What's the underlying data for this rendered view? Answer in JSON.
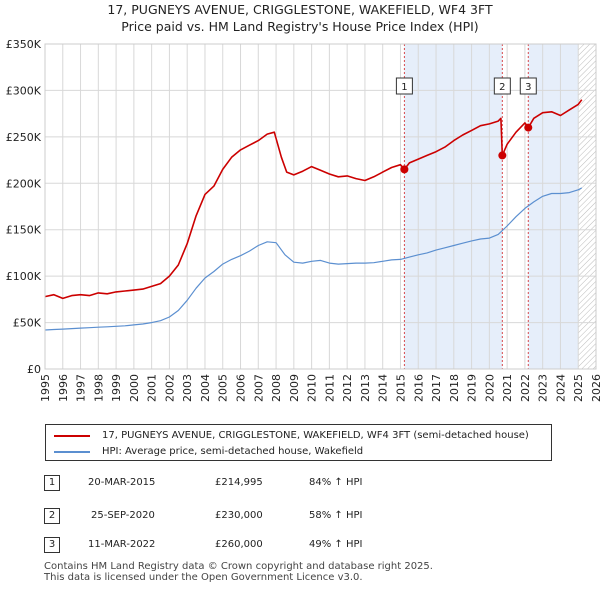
{
  "title_line1": "17, PUGNEYS AVENUE, CRIGGLESTONE, WAKEFIELD, WF4 3FT",
  "title_line2": "Price paid vs. HM Land Registry's House Price Index (HPI)",
  "colors": {
    "property": "#cc0000",
    "hpi": "#5b8fd0",
    "highlight": "#e6eefa",
    "grid": "#d8d8d8"
  },
  "legend": {
    "property_label": "17, PUGNEYS AVENUE, CRIGGLESTONE, WAKEFIELD, WF4 3FT (semi-detached house)",
    "hpi_label": "HPI: Average price, semi-detached house, Wakefield"
  },
  "transactions": [
    {
      "num": "1",
      "date": "20-MAR-2015",
      "price": "£214,995",
      "hpi": "84% ↑ HPI",
      "year": 2015.22,
      "value": 214995
    },
    {
      "num": "2",
      "date": "25-SEP-2020",
      "price": "£230,000",
      "hpi": "58% ↑ HPI",
      "year": 2020.73,
      "value": 230000
    },
    {
      "num": "3",
      "date": "11-MAR-2022",
      "price": "£260,000",
      "hpi": "49% ↑ HPI",
      "year": 2022.19,
      "value": 260000
    }
  ],
  "footer_line1": "Contains HM Land Registry data © Crown copyright and database right 2025.",
  "footer_line2": "This data is licensed under the Open Government Licence v3.0.",
  "chart_data": {
    "type": "line",
    "title": "17, PUGNEYS AVENUE, CRIGGLESTONE, WAKEFIELD, WF4 3FT — Price paid vs. HM Land Registry's House Price Index (HPI)",
    "xlim": [
      1995,
      2026
    ],
    "ylim": [
      0,
      350000
    ],
    "y_ticks": [
      0,
      50000,
      100000,
      150000,
      200000,
      250000,
      300000,
      350000
    ],
    "y_tick_labels": [
      "£0",
      "£50K",
      "£100K",
      "£150K",
      "£200K",
      "£250K",
      "£300K",
      "£350K"
    ],
    "x_ticks": [
      1995,
      1996,
      1997,
      1998,
      1999,
      2000,
      2001,
      2002,
      2003,
      2004,
      2005,
      2006,
      2007,
      2008,
      2009,
      2010,
      2011,
      2012,
      2013,
      2014,
      2015,
      2016,
      2017,
      2018,
      2019,
      2020,
      2021,
      2022,
      2023,
      2024,
      2025,
      2026
    ],
    "x_tick_labels": [
      "1995",
      "1996",
      "1997",
      "1998",
      "1999",
      "2000",
      "2001",
      "2002",
      "2003",
      "2004",
      "2005",
      "2006",
      "2007",
      "2008",
      "2009",
      "2010",
      "2011",
      "2012",
      "2013",
      "2014",
      "2015",
      "2016",
      "2017",
      "2018",
      "2019",
      "2020",
      "2021",
      "2022",
      "2023",
      "2024",
      "2025",
      "2026"
    ],
    "grid": true,
    "highlight_ranges": [
      [
        2015.22,
        2020.73
      ],
      [
        2022.19,
        2025.0
      ]
    ],
    "hatched_range": [
      2025.0,
      2026.0
    ],
    "series": [
      {
        "name": "17, PUGNEYS AVENUE, CRIGGLESTONE, WAKEFIELD, WF4 3FT (semi-detached house)",
        "x": [
          1995.0,
          1995.5,
          1996.0,
          1996.5,
          1997.0,
          1997.5,
          1998.0,
          1998.5,
          1999.0,
          1999.5,
          2000.0,
          2000.5,
          2001.0,
          2001.5,
          2002.0,
          2002.5,
          2003.0,
          2003.5,
          2004.0,
          2004.5,
          2005.0,
          2005.5,
          2006.0,
          2006.5,
          2007.0,
          2007.5,
          2007.9,
          2008.3,
          2008.6,
          2009.0,
          2009.5,
          2010.0,
          2010.5,
          2011.0,
          2011.5,
          2012.0,
          2012.5,
          2013.0,
          2013.5,
          2014.0,
          2014.5,
          2015.0,
          2015.22,
          2015.5,
          2016.0,
          2016.5,
          2017.0,
          2017.5,
          2018.0,
          2018.5,
          2019.0,
          2019.5,
          2020.0,
          2020.5,
          2020.65,
          2020.73,
          2021.0,
          2021.5,
          2022.0,
          2022.19,
          2022.5,
          2023.0,
          2023.5,
          2024.0,
          2024.5,
          2025.0,
          2025.2
        ],
        "values": [
          78000,
          80000,
          76000,
          79000,
          80000,
          79000,
          82000,
          81000,
          83000,
          84000,
          85000,
          86000,
          89000,
          92000,
          100000,
          112000,
          135000,
          165000,
          188000,
          197000,
          215000,
          228000,
          236000,
          241000,
          246000,
          253000,
          255000,
          228000,
          212000,
          209000,
          213000,
          218000,
          214000,
          210000,
          207000,
          208000,
          205000,
          203000,
          207000,
          212000,
          217000,
          220000,
          214995,
          222000,
          226000,
          230000,
          234000,
          239000,
          246000,
          252000,
          257000,
          262000,
          264000,
          267000,
          270000,
          230000,
          242000,
          255000,
          265000,
          260000,
          270000,
          276000,
          277000,
          273000,
          279000,
          285000,
          290000
        ]
      },
      {
        "name": "HPI: Average price, semi-detached house, Wakefield",
        "x": [
          1995.0,
          1995.5,
          1996.0,
          1996.5,
          1997.0,
          1997.5,
          1998.0,
          1998.5,
          1999.0,
          1999.5,
          2000.0,
          2000.5,
          2001.0,
          2001.5,
          2002.0,
          2002.5,
          2003.0,
          2003.5,
          2004.0,
          2004.5,
          2005.0,
          2005.5,
          2006.0,
          2006.5,
          2007.0,
          2007.5,
          2008.0,
          2008.5,
          2009.0,
          2009.5,
          2010.0,
          2010.5,
          2011.0,
          2011.5,
          2012.0,
          2012.5,
          2013.0,
          2013.5,
          2014.0,
          2014.5,
          2015.0,
          2015.5,
          2016.0,
          2016.5,
          2017.0,
          2017.5,
          2018.0,
          2018.5,
          2019.0,
          2019.5,
          2020.0,
          2020.5,
          2021.0,
          2021.5,
          2022.0,
          2022.5,
          2023.0,
          2023.5,
          2024.0,
          2024.5,
          2025.0,
          2025.2
        ],
        "values": [
          42000,
          42500,
          43000,
          43500,
          44000,
          44500,
          45000,
          45500,
          46000,
          46500,
          47500,
          48500,
          50000,
          52000,
          56000,
          63000,
          74000,
          87000,
          98000,
          105000,
          113000,
          118000,
          122000,
          127000,
          133000,
          137000,
          136000,
          123000,
          115000,
          114000,
          116000,
          117000,
          114000,
          113000,
          113500,
          114000,
          114000,
          114500,
          116000,
          117500,
          118000,
          120500,
          123000,
          125000,
          128000,
          130500,
          133000,
          135500,
          138000,
          140000,
          141000,
          145000,
          154000,
          164000,
          173000,
          180000,
          186000,
          189000,
          189000,
          190000,
          193000,
          195000
        ]
      }
    ]
  }
}
